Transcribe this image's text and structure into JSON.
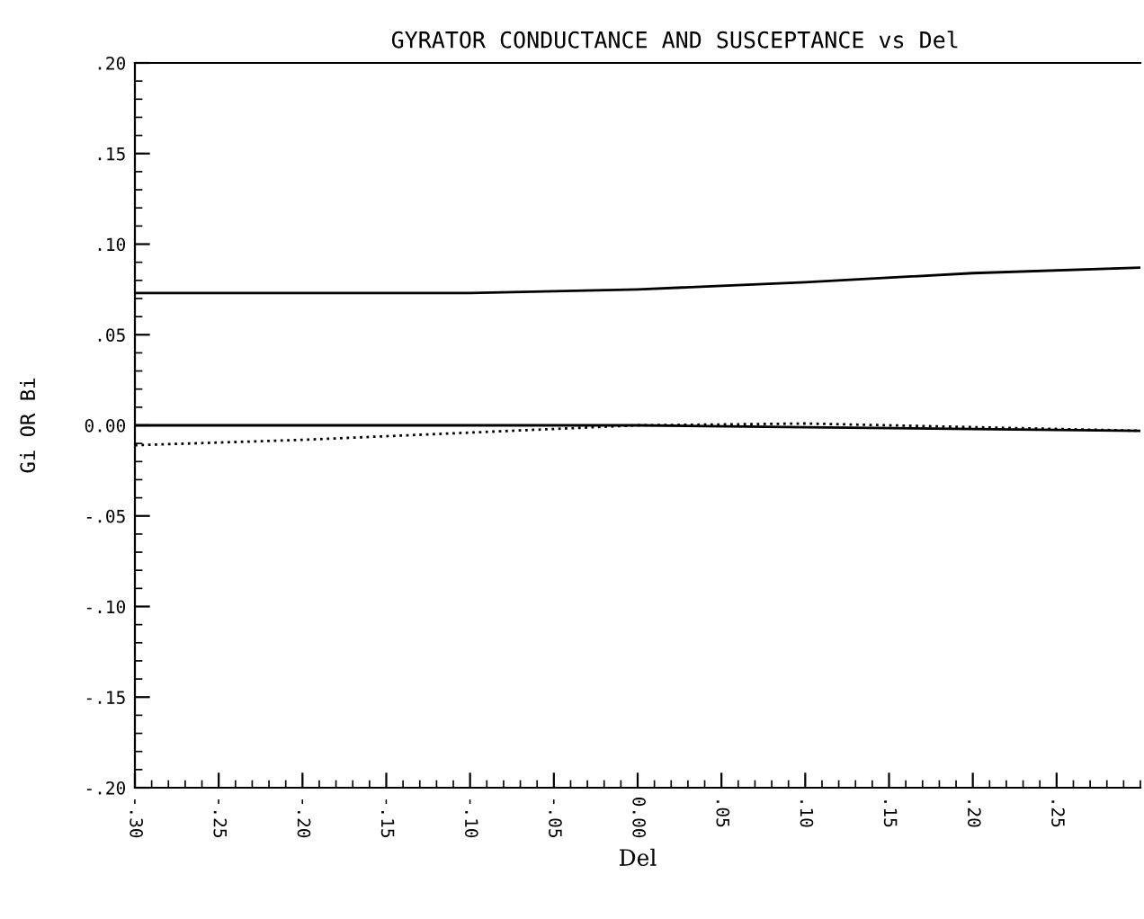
{
  "chart_data": {
    "type": "line",
    "title": "GYRATOR CONDUCTANCE AND SUSCEPTANCE vs Del",
    "xlabel": "Del",
    "ylabel": "Gi OR Bi",
    "xlim": [
      -0.3,
      0.3
    ],
    "ylim": [
      -0.2,
      0.2
    ],
    "xticks": [
      {
        "value": -0.3,
        "label": "-.30"
      },
      {
        "value": -0.25,
        "label": "-.25"
      },
      {
        "value": -0.2,
        "label": "-.20"
      },
      {
        "value": -0.15,
        "label": "-.15"
      },
      {
        "value": -0.1,
        "label": "-.10"
      },
      {
        "value": -0.05,
        "label": "-.05"
      },
      {
        "value": 0,
        "label": "0.00"
      },
      {
        "value": 0.05,
        "label": ".05"
      },
      {
        "value": 0.1,
        "label": ".10"
      },
      {
        "value": 0.15,
        "label": ".15"
      },
      {
        "value": 0.2,
        "label": ".20"
      },
      {
        "value": 0.25,
        "label": ".25"
      }
    ],
    "yticks": [
      {
        "value": -0.2,
        "label": "-.20"
      },
      {
        "value": -0.15,
        "label": "-.15"
      },
      {
        "value": -0.1,
        "label": "-.10"
      },
      {
        "value": -0.05,
        "label": "-.05"
      },
      {
        "value": 0,
        "label": "0.00"
      },
      {
        "value": 0.05,
        "label": ".05"
      },
      {
        "value": 0.1,
        "label": ".10"
      },
      {
        "value": 0.15,
        "label": ".15"
      },
      {
        "value": 0.2,
        "label": ".20"
      }
    ],
    "grid": false,
    "legend": false,
    "marker": "none",
    "series": [
      {
        "color": "#000000",
        "line_style": "solid",
        "x": [
          -0.3,
          -0.2,
          -0.1,
          0,
          0.1,
          0.2,
          0.3
        ],
        "values": [
          0.073,
          0.073,
          0.073,
          0.075,
          0.079,
          0.084,
          0.087
        ]
      },
      {
        "color": "#000000",
        "line_style": "solid",
        "x": [
          -0.3,
          0,
          0.1,
          0.2,
          0.3
        ],
        "values": [
          0.0,
          0.0,
          -0.001,
          -0.002,
          -0.003
        ]
      },
      {
        "color": "#000000",
        "line_style": "dotted",
        "x": [
          -0.3,
          -0.2,
          -0.1,
          -0.05,
          0,
          0.1,
          0.2,
          0.3
        ],
        "values": [
          -0.011,
          -0.008,
          -0.004,
          -0.002,
          0.0,
          0.001,
          -0.001,
          -0.003
        ]
      }
    ]
  }
}
